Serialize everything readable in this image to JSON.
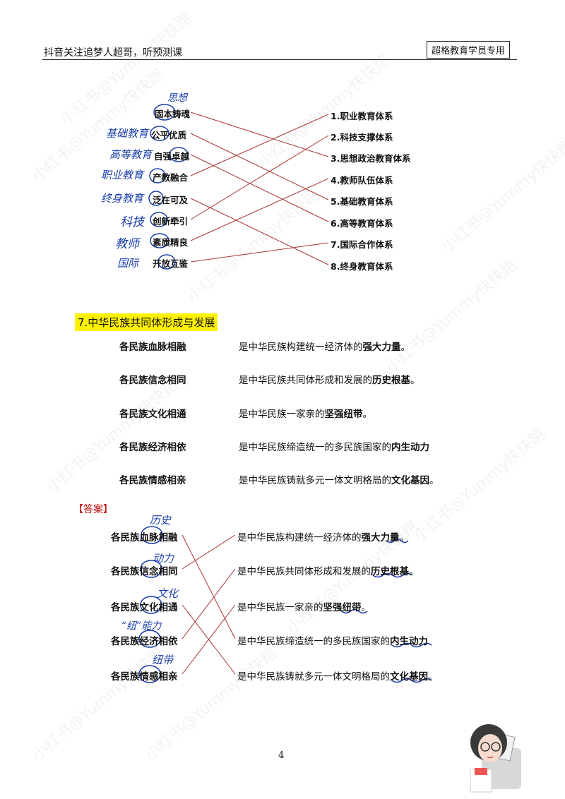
{
  "header": {
    "left": "抖音关注追梦人超哥，听预测课",
    "right": "超格教育学员专用"
  },
  "matching1": {
    "left": [
      "固本铸魂",
      "公平优质",
      "自强卓越",
      "产教融合",
      "泛在可及",
      "创新牵引",
      "素质精良",
      "开放互鉴"
    ],
    "right": [
      "1.职业教育体系",
      "2.科技支撑体系",
      "3.思想政治教育体系",
      "4.教师队伍体系",
      "5.基础教育体系",
      "6.高等教育体系",
      "7.国际合作体系",
      "8.终身教育体系"
    ],
    "notes": [
      "思想",
      "基础教育",
      "高等教育",
      "职业教育",
      "终身教育",
      "科技",
      "教师",
      "国际"
    ]
  },
  "section7": {
    "title": "7.中华民族共同体形成与发展",
    "left": [
      "各民族血脉相融",
      "各民族信念相同",
      "各民族文化相通",
      "各民族经济相依",
      "各民族情感相亲"
    ],
    "right": [
      {
        "pre": "是中华民族构建统一经济体的",
        "em": "强大力量",
        "post": "。"
      },
      {
        "pre": "是中华民族共同体形成和发展的",
        "em": "历史根基",
        "post": "。"
      },
      {
        "pre": "是中华民族一家亲的",
        "em": "坚强纽带",
        "post": "。"
      },
      {
        "pre": "是中华民族缔造统一的多民族国家的",
        "em": "内生动力",
        "post": ""
      },
      {
        "pre": "是中华民族铸就多元一体文明格局的",
        "em": "文化基因",
        "post": "。"
      }
    ]
  },
  "answer": {
    "label": "【答案】",
    "notes": [
      "历史",
      "动力",
      "文化",
      "“纽”能力",
      "纽带"
    ]
  },
  "page_number": "4",
  "watermark": "小红书@Yummy快快跑"
}
